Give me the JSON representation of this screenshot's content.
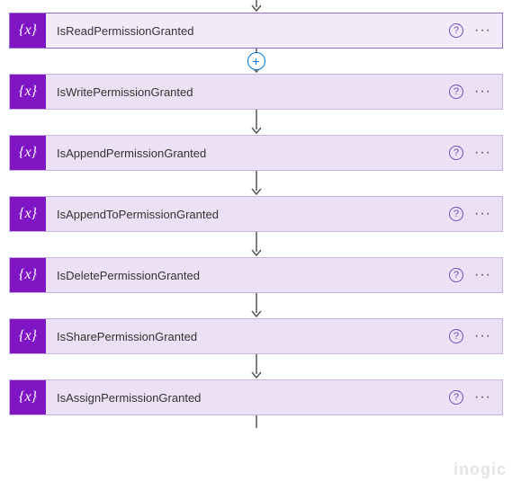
{
  "colors": {
    "card_bg": "#ece1f4",
    "card_bg_selected": "#f3eaf9",
    "card_border": "#c9b3e0",
    "card_border_selected": "#8e6fc7",
    "icon_bg": "#8015c4",
    "icon_fg": "#ffffff",
    "arrow": "#555555",
    "help_color": "#6f52b4",
    "add_button_color": "#0078d4"
  },
  "icon_glyph": "{x}",
  "help_glyph": "?",
  "more_glyph": "···",
  "add_glyph": "+",
  "watermark": "inogic",
  "steps": [
    {
      "label": "IsReadPermissionGranted",
      "selected": true
    },
    {
      "label": "IsWritePermissionGranted",
      "selected": false
    },
    {
      "label": "IsAppendPermissionGranted",
      "selected": false
    },
    {
      "label": "IsAppendToPermissionGranted",
      "selected": false
    },
    {
      "label": "IsDeletePermissionGranted",
      "selected": false
    },
    {
      "label": "IsSharePermissionGranted",
      "selected": false
    },
    {
      "label": "IsAssignPermissionGranted",
      "selected": false
    }
  ]
}
